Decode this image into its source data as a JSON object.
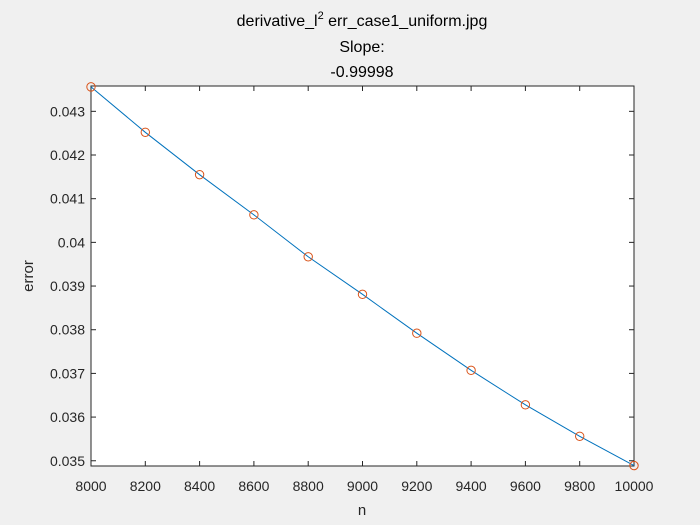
{
  "chart_data": {
    "type": "line",
    "title": {
      "base": "derivative_l",
      "superscript": "2",
      "rest": " err_case1_uniform.jpg",
      "line2": "Slope:",
      "line3": "-0.99998"
    },
    "xlabel": "n",
    "ylabel": "error",
    "xlim": [
      8000,
      10000
    ],
    "ylim": [
      0.03488,
      0.04358
    ],
    "xticks": [
      8000,
      8200,
      8400,
      8600,
      8800,
      9000,
      9200,
      9400,
      9600,
      9800,
      10000
    ],
    "xtick_labels": [
      "8000",
      "8200",
      "8400",
      "8600",
      "8800",
      "9000",
      "9200",
      "9400",
      "9600",
      "9800",
      "10000"
    ],
    "yticks": [
      0.035,
      0.036,
      0.037,
      0.038,
      0.039,
      0.04,
      0.041,
      0.042,
      0.043
    ],
    "ytick_labels": [
      "0.035",
      "0.036",
      "0.037",
      "0.038",
      "0.039",
      "0.04",
      "0.041",
      "0.042",
      "0.043"
    ],
    "grid": false,
    "series": [
      {
        "style": "line",
        "color": "#0072bd",
        "x": [
          8000,
          8200,
          8400,
          8600,
          8800,
          9000,
          9200,
          9400,
          9600,
          9800,
          10000
        ],
        "y": [
          0.04356,
          0.04252,
          0.04155,
          0.04063,
          0.03967,
          0.03881,
          0.03792,
          0.03707,
          0.03628,
          0.03556,
          0.03489
        ]
      },
      {
        "style": "markers",
        "marker": "circle",
        "color": "#d95319",
        "x": [
          8000,
          8200,
          8400,
          8600,
          8800,
          9000,
          9200,
          9400,
          9600,
          9800,
          10000
        ],
        "y": [
          0.04356,
          0.04252,
          0.04155,
          0.04063,
          0.03967,
          0.03881,
          0.03792,
          0.03707,
          0.03628,
          0.03556,
          0.03489
        ]
      }
    ]
  }
}
